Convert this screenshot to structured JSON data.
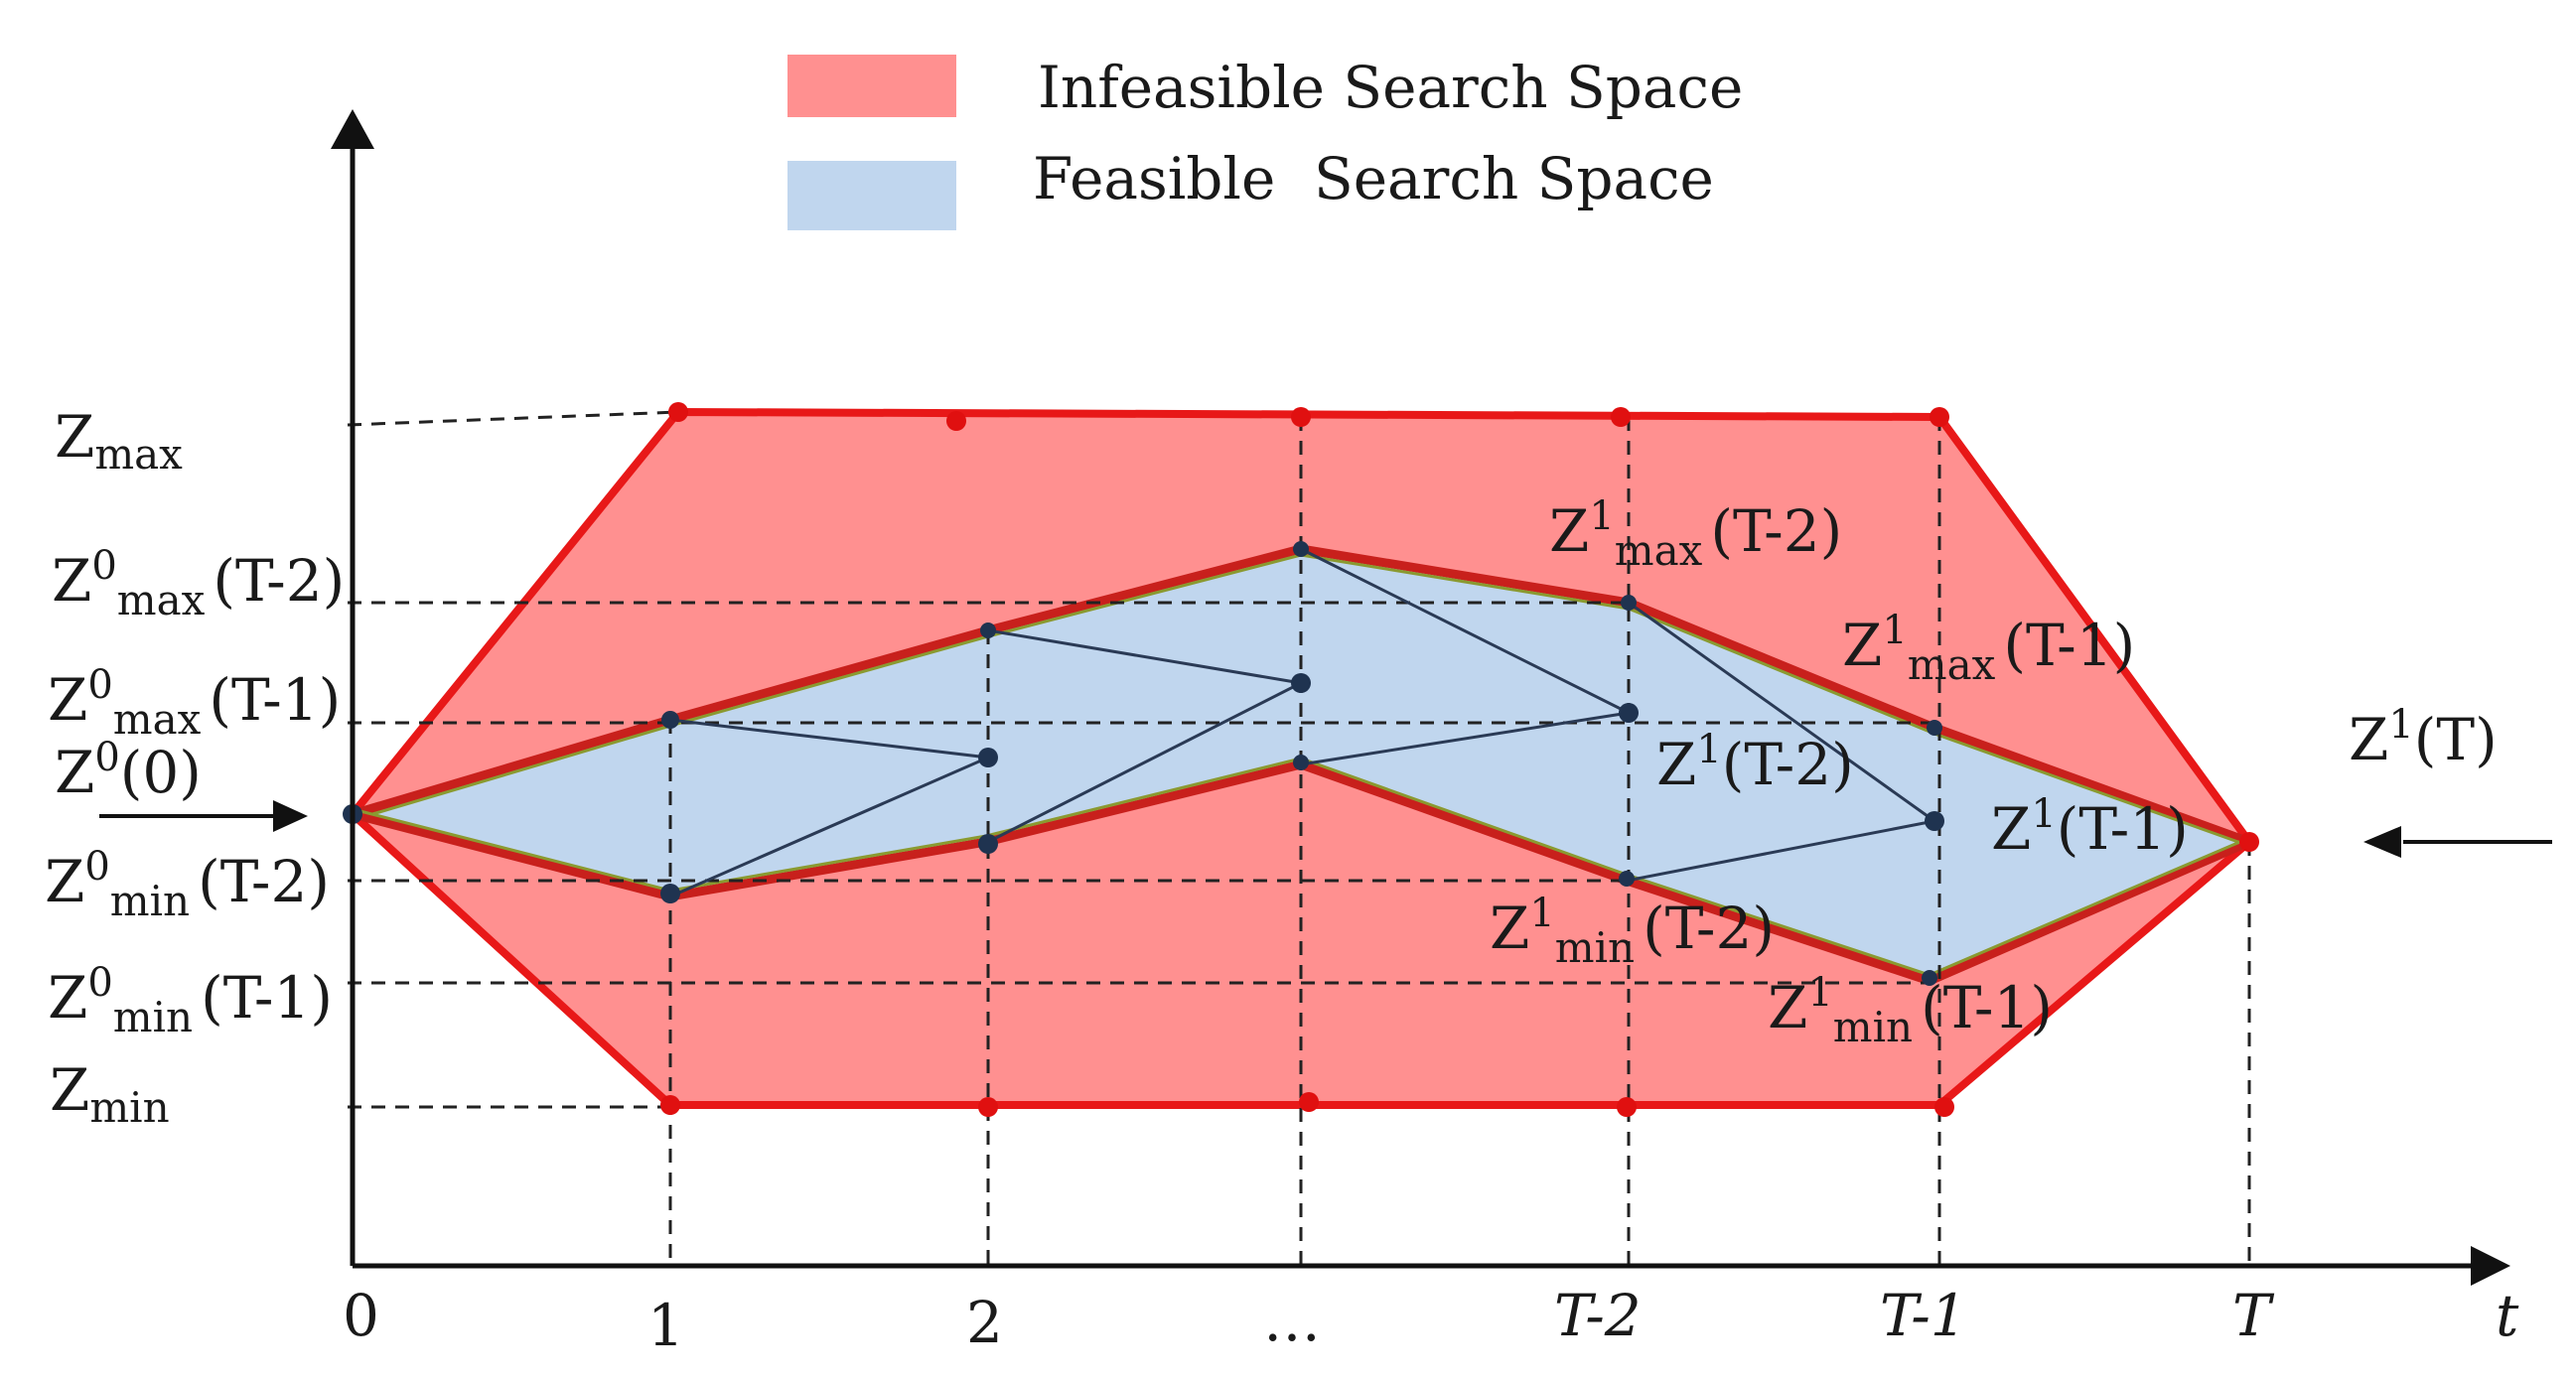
{
  "legend": {
    "infeasible": {
      "label": "Infeasible Search Space",
      "color": "#ff9090"
    },
    "feasible": {
      "label_part1": "Feasible",
      "label_part2": "Search Space",
      "color": "#c0d6ee"
    }
  },
  "x_axis": {
    "ticks": [
      "0",
      "1",
      "2",
      "…",
      "T-2",
      "T-1",
      "T"
    ],
    "label": "t"
  },
  "y_axis": {
    "labels": {
      "zmax": {
        "main": "Z",
        "sub": "max"
      },
      "z0max_t2": {
        "main": "Z",
        "sup": "0",
        "sub": "max",
        "arg": "(T-2)"
      },
      "z0max_t1": {
        "main": "Z",
        "sup": "0",
        "sub": "max",
        "arg": "(T-1)"
      },
      "z0_0": {
        "main": "Z",
        "sup": "0",
        "arg": "(0)"
      },
      "z0min_t2": {
        "main": "Z",
        "sup": "0",
        "sub": "min",
        "arg": "(T-2)"
      },
      "z0min_t1": {
        "main": "Z",
        "sup": "0",
        "sub": "min",
        "arg": "(T-1)"
      },
      "zmin": {
        "main": "Z",
        "sub": "min"
      }
    }
  },
  "annotations": {
    "z1max_t2": {
      "main": "Z",
      "sup": "1",
      "sub": "max",
      "arg": "(T-2)"
    },
    "z1max_t1": {
      "main": "Z",
      "sup": "1",
      "sub": "max",
      "arg": "(T-1)"
    },
    "z1_t2": {
      "main": "Z",
      "sup": "1",
      "arg": "(T-2)"
    },
    "z1_t1": {
      "main": "Z",
      "sup": "1",
      "arg": "(T-1)"
    },
    "z1min_t2": {
      "main": "Z",
      "sup": "1",
      "sub": "min",
      "arg": "(T-2)"
    },
    "z1min_t1": {
      "main": "Z",
      "sup": "1",
      "sub": "min",
      "arg": "(T-1)"
    },
    "z1_T": {
      "main": "Z",
      "sup": "1",
      "arg": "(T)"
    }
  },
  "colors": {
    "infeasible_edge": "#e81818",
    "feasible_fill": "#c0d6ee",
    "path_line": "#2a3a55",
    "axis": "#111111"
  }
}
